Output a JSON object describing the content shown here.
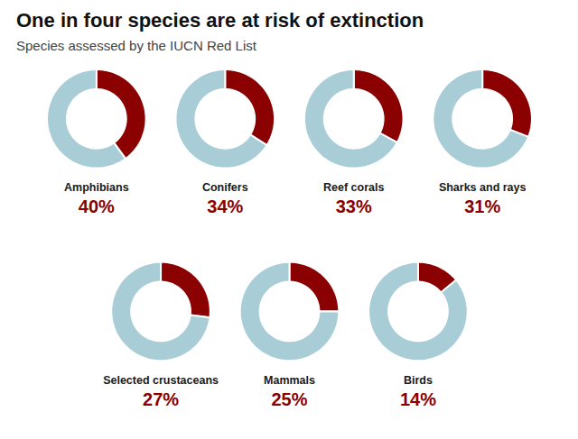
{
  "chart_data": {
    "type": "donut",
    "title": "One in four species are at risk of extinction",
    "subtitle": "Species assessed by the IUCN Red List",
    "categories": [
      "Amphibians",
      "Conifers",
      "Reef corals",
      "Sharks and rays",
      "Selected crustaceans",
      "Mammals",
      "Birds"
    ],
    "values": [
      40,
      34,
      33,
      31,
      27,
      25,
      14
    ],
    "value_labels": [
      "40%",
      "34%",
      "33%",
      "31%",
      "27%",
      "25%",
      "14%"
    ],
    "colors": [
      "#8B0000",
      "#a8cdd6"
    ],
    "data_labels": true
  }
}
